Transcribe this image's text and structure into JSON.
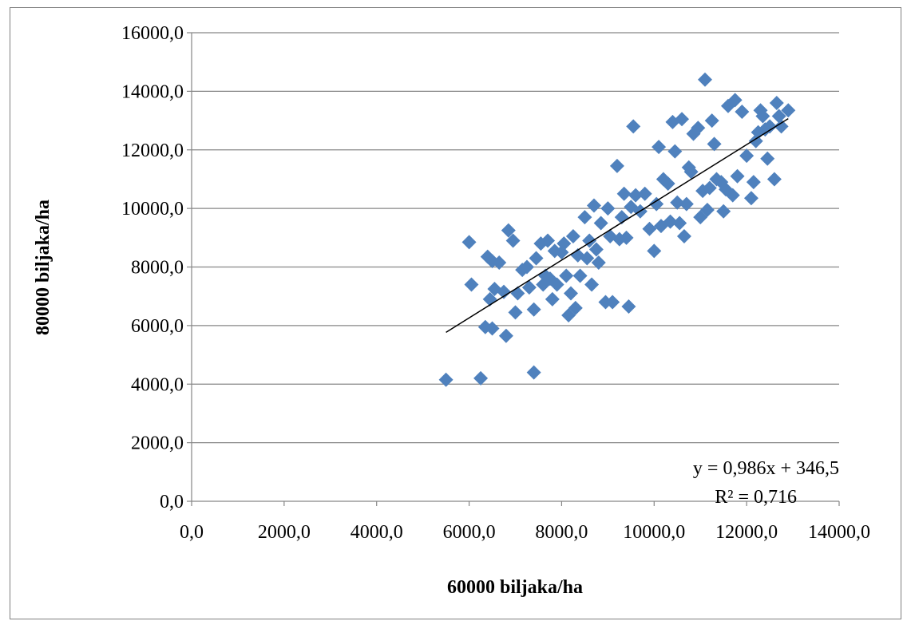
{
  "chart_data": {
    "type": "scatter",
    "title": "",
    "xlabel": "60000 biljaka/ha",
    "ylabel": "80000 biljaka/ha",
    "xlim": [
      0,
      14000
    ],
    "ylim": [
      0,
      16000
    ],
    "x_ticks": [
      0,
      2000,
      4000,
      6000,
      8000,
      10000,
      12000,
      14000
    ],
    "y_ticks": [
      0,
      2000,
      4000,
      6000,
      8000,
      10000,
      12000,
      14000,
      16000
    ],
    "x_tick_labels": [
      "0,0",
      "2000,0",
      "4000,0",
      "6000,0",
      "8000,0",
      "10000,0",
      "12000,0",
      "14000,0"
    ],
    "y_tick_labels": [
      "0,0",
      "2000,0",
      "4000,0",
      "6000,0",
      "8000,0",
      "10000,0",
      "12000,0",
      "14000,0",
      "16000,0"
    ],
    "grid": "horizontal",
    "marker_color": "#4f81bd",
    "trendline_color": "#000000",
    "trendline": {
      "slope": 0.986,
      "intercept": 346.5,
      "x_range": [
        5500,
        12900
      ],
      "equation_label": "y = 0,986x + 346,5",
      "r2_label": "R² = 0,716"
    },
    "series": [
      {
        "points": [
          [
            5500,
            4150
          ],
          [
            6250,
            4200
          ],
          [
            7400,
            4400
          ],
          [
            6800,
            5650
          ],
          [
            6350,
            5950
          ],
          [
            6500,
            5900
          ],
          [
            6450,
            6900
          ],
          [
            6050,
            7400
          ],
          [
            6000,
            8850
          ],
          [
            6400,
            8350
          ],
          [
            6500,
            8200
          ],
          [
            6650,
            8150
          ],
          [
            6850,
            9250
          ],
          [
            6950,
            8900
          ],
          [
            6550,
            7250
          ],
          [
            6750,
            7150
          ],
          [
            7000,
            6450
          ],
          [
            7050,
            7100
          ],
          [
            7150,
            7900
          ],
          [
            7250,
            8000
          ],
          [
            7300,
            7300
          ],
          [
            7400,
            6550
          ],
          [
            7450,
            8300
          ],
          [
            7550,
            8800
          ],
          [
            7600,
            7400
          ],
          [
            7650,
            7700
          ],
          [
            7700,
            8900
          ],
          [
            7750,
            7600
          ],
          [
            7800,
            6900
          ],
          [
            7850,
            8550
          ],
          [
            7900,
            7400
          ],
          [
            8000,
            8500
          ],
          [
            8050,
            8800
          ],
          [
            8100,
            7700
          ],
          [
            8150,
            6350
          ],
          [
            8200,
            7100
          ],
          [
            8250,
            9050
          ],
          [
            8300,
            6600
          ],
          [
            8350,
            8400
          ],
          [
            8400,
            7700
          ],
          [
            8500,
            9700
          ],
          [
            8550,
            8300
          ],
          [
            8600,
            8900
          ],
          [
            8650,
            7400
          ],
          [
            8700,
            10100
          ],
          [
            8750,
            8600
          ],
          [
            8800,
            8150
          ],
          [
            8850,
            9500
          ],
          [
            8950,
            6800
          ],
          [
            9000,
            10000
          ],
          [
            9050,
            9050
          ],
          [
            9100,
            6800
          ],
          [
            9200,
            11450
          ],
          [
            9250,
            8950
          ],
          [
            9300,
            9700
          ],
          [
            9350,
            10500
          ],
          [
            9400,
            9000
          ],
          [
            9450,
            6650
          ],
          [
            9500,
            10050
          ],
          [
            9550,
            12800
          ],
          [
            9600,
            10450
          ],
          [
            9700,
            9900
          ],
          [
            9800,
            10500
          ],
          [
            9900,
            9300
          ],
          [
            10000,
            8550
          ],
          [
            10050,
            10150
          ],
          [
            10100,
            12100
          ],
          [
            10150,
            9400
          ],
          [
            10200,
            11000
          ],
          [
            10300,
            10850
          ],
          [
            10350,
            9550
          ],
          [
            10400,
            12950
          ],
          [
            10450,
            11950
          ],
          [
            10500,
            10200
          ],
          [
            10550,
            9500
          ],
          [
            10600,
            13050
          ],
          [
            10650,
            9050
          ],
          [
            10700,
            10150
          ],
          [
            10750,
            11400
          ],
          [
            10800,
            11250
          ],
          [
            10850,
            12550
          ],
          [
            10950,
            12750
          ],
          [
            11000,
            9700
          ],
          [
            11050,
            10600
          ],
          [
            11100,
            14400
          ],
          [
            11150,
            9950
          ],
          [
            11200,
            10700
          ],
          [
            11250,
            13000
          ],
          [
            11300,
            12200
          ],
          [
            11350,
            11000
          ],
          [
            11450,
            10900
          ],
          [
            11500,
            9900
          ],
          [
            11550,
            10650
          ],
          [
            11600,
            13500
          ],
          [
            11700,
            10450
          ],
          [
            11750,
            13700
          ],
          [
            11800,
            11100
          ],
          [
            11900,
            13300
          ],
          [
            12000,
            11800
          ],
          [
            12100,
            10350
          ],
          [
            12150,
            10900
          ],
          [
            12200,
            12300
          ],
          [
            12250,
            12600
          ],
          [
            12300,
            13350
          ],
          [
            12350,
            13150
          ],
          [
            12400,
            12700
          ],
          [
            12450,
            11700
          ],
          [
            12500,
            12800
          ],
          [
            12600,
            11000
          ],
          [
            12650,
            13600
          ],
          [
            12700,
            13150
          ],
          [
            12750,
            12800
          ],
          [
            12900,
            13350
          ]
        ]
      }
    ]
  }
}
